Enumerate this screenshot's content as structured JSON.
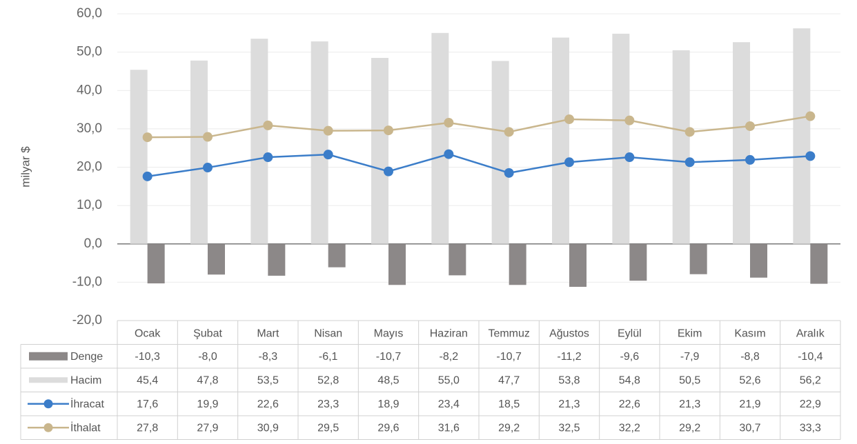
{
  "chart_data": {
    "type": "bar",
    "y_axis_label": "milyar $",
    "categories": [
      "Ocak",
      "Şubat",
      "Mart",
      "Nisan",
      "Mayıs",
      "Haziran",
      "Temmuz",
      "Ağustos",
      "Eylül",
      "Ekim",
      "Kasım",
      "Aralık"
    ],
    "series": [
      {
        "name": "Denge",
        "type": "bar",
        "color": "#8c8888",
        "values": [
          -10.3,
          -8.0,
          -8.3,
          -6.1,
          -10.7,
          -8.2,
          -10.7,
          -11.2,
          -9.6,
          -7.9,
          -8.8,
          -10.4
        ],
        "value_labels": [
          "-10,3",
          "-8,0",
          "-8,3",
          "-6,1",
          "-10,7",
          "-8,2",
          "-10,7",
          "-11,2",
          "-9,6",
          "-7,9",
          "-8,8",
          "-10,4"
        ]
      },
      {
        "name": "Hacim",
        "type": "bar",
        "color": "#dcdcdc",
        "values": [
          45.4,
          47.8,
          53.5,
          52.8,
          48.5,
          55.0,
          47.7,
          53.8,
          54.8,
          50.5,
          52.6,
          56.2
        ],
        "value_labels": [
          "45,4",
          "47,8",
          "53,5",
          "52,8",
          "48,5",
          "55,0",
          "47,7",
          "53,8",
          "54,8",
          "50,5",
          "52,6",
          "56,2"
        ]
      },
      {
        "name": "İhracat",
        "type": "line",
        "color": "#3b7dc9",
        "values": [
          17.6,
          19.9,
          22.6,
          23.3,
          18.9,
          23.4,
          18.5,
          21.3,
          22.6,
          21.3,
          21.9,
          22.9
        ],
        "value_labels": [
          "17,6",
          "19,9",
          "22,6",
          "23,3",
          "18,9",
          "23,4",
          "18,5",
          "21,3",
          "22,6",
          "21,3",
          "21,9",
          "22,9"
        ]
      },
      {
        "name": "İthalat",
        "type": "line",
        "color": "#c9b68d",
        "values": [
          27.8,
          27.9,
          30.9,
          29.5,
          29.6,
          31.6,
          29.2,
          32.5,
          32.2,
          29.2,
          30.7,
          33.3
        ],
        "value_labels": [
          "27,8",
          "27,9",
          "30,9",
          "29,5",
          "29,6",
          "31,6",
          "29,2",
          "32,5",
          "32,2",
          "29,2",
          "30,7",
          "33,3"
        ]
      }
    ],
    "ylim": [
      -20,
      60
    ],
    "yticks": [
      {
        "value": -20,
        "label": "-20,0"
      },
      {
        "value": -10,
        "label": "-10,0"
      },
      {
        "value": 0,
        "label": "0,0"
      },
      {
        "value": 10,
        "label": "10,0"
      },
      {
        "value": 20,
        "label": "20,0"
      },
      {
        "value": 30,
        "label": "30,0"
      },
      {
        "value": 40,
        "label": "40,0"
      },
      {
        "value": 50,
        "label": "50,0"
      },
      {
        "value": 60,
        "label": "60,0"
      }
    ],
    "grid": true
  }
}
